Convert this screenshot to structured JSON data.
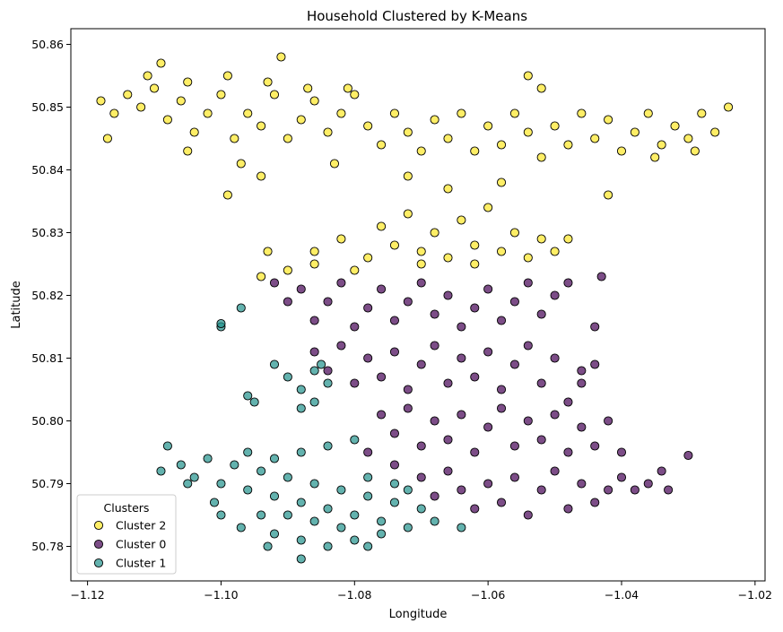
{
  "chart_data": {
    "type": "scatter",
    "title": "Household Clustered by K-Means",
    "xlabel": "Longitude",
    "ylabel": "Latitude",
    "xlim": [
      -1.1225,
      -1.0185
    ],
    "ylim": [
      50.7745,
      50.8625
    ],
    "xticks": [
      -1.12,
      -1.1,
      -1.08,
      -1.06,
      -1.04,
      -1.02
    ],
    "xtick_labels": [
      "−1.12",
      "−1.10",
      "−1.08",
      "−1.06",
      "−1.04",
      "−1.02"
    ],
    "yticks": [
      50.78,
      50.79,
      50.8,
      50.81,
      50.82,
      50.83,
      50.84,
      50.85,
      50.86
    ],
    "ytick_labels": [
      "50.78",
      "50.79",
      "50.80",
      "50.81",
      "50.82",
      "50.83",
      "50.84",
      "50.85",
      "50.86"
    ],
    "grid": false,
    "legend": {
      "title": "Clusters",
      "position": "lower-left"
    },
    "series": [
      {
        "name": "Cluster 2",
        "color": "#fde725",
        "points": [
          [
            -1.118,
            50.851
          ],
          [
            -1.116,
            50.849
          ],
          [
            -1.114,
            50.852
          ],
          [
            -1.112,
            50.85
          ],
          [
            -1.11,
            50.853
          ],
          [
            -1.108,
            50.848
          ],
          [
            -1.106,
            50.851
          ],
          [
            -1.104,
            50.846
          ],
          [
            -1.102,
            50.849
          ],
          [
            -1.1,
            50.852
          ],
          [
            -1.098,
            50.845
          ],
          [
            -1.096,
            50.849
          ],
          [
            -1.094,
            50.847
          ],
          [
            -1.092,
            50.852
          ],
          [
            -1.09,
            50.845
          ],
          [
            -1.088,
            50.848
          ],
          [
            -1.086,
            50.851
          ],
          [
            -1.084,
            50.846
          ],
          [
            -1.082,
            50.849
          ],
          [
            -1.08,
            50.852
          ],
          [
            -1.078,
            50.847
          ],
          [
            -1.076,
            50.844
          ],
          [
            -1.074,
            50.849
          ],
          [
            -1.072,
            50.846
          ],
          [
            -1.07,
            50.843
          ],
          [
            -1.068,
            50.848
          ],
          [
            -1.066,
            50.845
          ],
          [
            -1.064,
            50.849
          ],
          [
            -1.062,
            50.843
          ],
          [
            -1.06,
            50.847
          ],
          [
            -1.058,
            50.844
          ],
          [
            -1.056,
            50.849
          ],
          [
            -1.054,
            50.846
          ],
          [
            -1.052,
            50.842
          ],
          [
            -1.05,
            50.847
          ],
          [
            -1.048,
            50.844
          ],
          [
            -1.046,
            50.849
          ],
          [
            -1.044,
            50.845
          ],
          [
            -1.042,
            50.848
          ],
          [
            -1.04,
            50.843
          ],
          [
            -1.038,
            50.846
          ],
          [
            -1.036,
            50.849
          ],
          [
            -1.034,
            50.844
          ],
          [
            -1.032,
            50.847
          ],
          [
            -1.03,
            50.845
          ],
          [
            -1.028,
            50.849
          ],
          [
            -1.026,
            50.846
          ],
          [
            -1.024,
            50.85
          ],
          [
            -1.117,
            50.845
          ],
          [
            -1.111,
            50.855
          ],
          [
            -1.105,
            50.854
          ],
          [
            -1.099,
            50.855
          ],
          [
            -1.093,
            50.854
          ],
          [
            -1.087,
            50.853
          ],
          [
            -1.081,
            50.853
          ],
          [
            -1.109,
            50.857
          ],
          [
            -1.091,
            50.858
          ],
          [
            -1.099,
            50.836
          ],
          [
            -1.094,
            50.839
          ],
          [
            -1.083,
            50.841
          ],
          [
            -1.105,
            50.843
          ],
          [
            -1.097,
            50.841
          ],
          [
            -1.072,
            50.839
          ],
          [
            -1.066,
            50.837
          ],
          [
            -1.058,
            50.838
          ],
          [
            -1.054,
            50.855
          ],
          [
            -1.052,
            50.853
          ],
          [
            -1.042,
            50.836
          ],
          [
            -1.035,
            50.842
          ],
          [
            -1.029,
            50.843
          ],
          [
            -1.086,
            50.827
          ],
          [
            -1.082,
            50.829
          ],
          [
            -1.078,
            50.826
          ],
          [
            -1.076,
            50.831
          ],
          [
            -1.074,
            50.828
          ],
          [
            -1.072,
            50.833
          ],
          [
            -1.07,
            50.827
          ],
          [
            -1.068,
            50.83
          ],
          [
            -1.066,
            50.826
          ],
          [
            -1.064,
            50.832
          ],
          [
            -1.062,
            50.828
          ],
          [
            -1.06,
            50.834
          ],
          [
            -1.058,
            50.827
          ],
          [
            -1.056,
            50.83
          ],
          [
            -1.054,
            50.826
          ],
          [
            -1.052,
            50.829
          ],
          [
            -1.05,
            50.827
          ],
          [
            -1.048,
            50.829
          ],
          [
            -1.08,
            50.824
          ],
          [
            -1.09,
            50.824
          ],
          [
            -1.093,
            50.827
          ],
          [
            -1.094,
            50.823
          ],
          [
            -1.086,
            50.825
          ],
          [
            -1.07,
            50.825
          ],
          [
            -1.062,
            50.825
          ]
        ]
      },
      {
        "name": "Cluster 0",
        "color": "#440154",
        "points": [
          [
            -1.092,
            50.822
          ],
          [
            -1.09,
            50.819
          ],
          [
            -1.088,
            50.821
          ],
          [
            -1.086,
            50.816
          ],
          [
            -1.084,
            50.819
          ],
          [
            -1.082,
            50.822
          ],
          [
            -1.08,
            50.815
          ],
          [
            -1.078,
            50.818
          ],
          [
            -1.076,
            50.821
          ],
          [
            -1.074,
            50.816
          ],
          [
            -1.072,
            50.819
          ],
          [
            -1.07,
            50.822
          ],
          [
            -1.068,
            50.817
          ],
          [
            -1.066,
            50.82
          ],
          [
            -1.064,
            50.815
          ],
          [
            -1.062,
            50.818
          ],
          [
            -1.06,
            50.821
          ],
          [
            -1.058,
            50.816
          ],
          [
            -1.056,
            50.819
          ],
          [
            -1.054,
            50.822
          ],
          [
            -1.052,
            50.817
          ],
          [
            -1.05,
            50.82
          ],
          [
            -1.048,
            50.822
          ],
          [
            -1.086,
            50.811
          ],
          [
            -1.084,
            50.808
          ],
          [
            -1.082,
            50.812
          ],
          [
            -1.08,
            50.806
          ],
          [
            -1.078,
            50.81
          ],
          [
            -1.076,
            50.807
          ],
          [
            -1.074,
            50.811
          ],
          [
            -1.072,
            50.805
          ],
          [
            -1.07,
            50.809
          ],
          [
            -1.068,
            50.812
          ],
          [
            -1.066,
            50.806
          ],
          [
            -1.064,
            50.81
          ],
          [
            -1.062,
            50.807
          ],
          [
            -1.06,
            50.811
          ],
          [
            -1.058,
            50.805
          ],
          [
            -1.056,
            50.809
          ],
          [
            -1.054,
            50.812
          ],
          [
            -1.052,
            50.806
          ],
          [
            -1.05,
            50.81
          ],
          [
            -1.048,
            50.803
          ],
          [
            -1.046,
            50.808
          ],
          [
            -1.044,
            50.815
          ],
          [
            -1.076,
            50.801
          ],
          [
            -1.074,
            50.798
          ],
          [
            -1.072,
            50.802
          ],
          [
            -1.07,
            50.796
          ],
          [
            -1.068,
            50.8
          ],
          [
            -1.066,
            50.797
          ],
          [
            -1.064,
            50.801
          ],
          [
            -1.062,
            50.795
          ],
          [
            -1.06,
            50.799
          ],
          [
            -1.058,
            50.802
          ],
          [
            -1.056,
            50.796
          ],
          [
            -1.054,
            50.8
          ],
          [
            -1.052,
            50.797
          ],
          [
            -1.05,
            50.801
          ],
          [
            -1.048,
            50.795
          ],
          [
            -1.046,
            50.799
          ],
          [
            -1.044,
            50.796
          ],
          [
            -1.042,
            50.8
          ],
          [
            -1.04,
            50.795
          ],
          [
            -1.07,
            50.791
          ],
          [
            -1.068,
            50.788
          ],
          [
            -1.066,
            50.792
          ],
          [
            -1.064,
            50.789
          ],
          [
            -1.062,
            50.786
          ],
          [
            -1.06,
            50.79
          ],
          [
            -1.058,
            50.787
          ],
          [
            -1.056,
            50.791
          ],
          [
            -1.054,
            50.785
          ],
          [
            -1.052,
            50.789
          ],
          [
            -1.05,
            50.792
          ],
          [
            -1.048,
            50.786
          ],
          [
            -1.046,
            50.79
          ],
          [
            -1.044,
            50.787
          ],
          [
            -1.042,
            50.789
          ],
          [
            -1.04,
            50.791
          ],
          [
            -1.038,
            50.789
          ],
          [
            -1.036,
            50.79
          ],
          [
            -1.034,
            50.792
          ],
          [
            -1.033,
            50.789
          ],
          [
            -1.03,
            50.7945
          ],
          [
            -1.043,
            50.823
          ],
          [
            -1.044,
            50.809
          ],
          [
            -1.046,
            50.806
          ],
          [
            -1.078,
            50.795
          ],
          [
            -1.074,
            50.793
          ]
        ]
      },
      {
        "name": "Cluster 1",
        "color": "#21918c",
        "points": [
          [
            -1.108,
            50.796
          ],
          [
            -1.106,
            50.793
          ],
          [
            -1.104,
            50.791
          ],
          [
            -1.102,
            50.794
          ],
          [
            -1.1,
            50.79
          ],
          [
            -1.098,
            50.793
          ],
          [
            -1.096,
            50.789
          ],
          [
            -1.094,
            50.792
          ],
          [
            -1.092,
            50.788
          ],
          [
            -1.09,
            50.791
          ],
          [
            -1.088,
            50.787
          ],
          [
            -1.086,
            50.79
          ],
          [
            -1.084,
            50.786
          ],
          [
            -1.082,
            50.789
          ],
          [
            -1.08,
            50.785
          ],
          [
            -1.078,
            50.788
          ],
          [
            -1.076,
            50.784
          ],
          [
            -1.074,
            50.787
          ],
          [
            -1.072,
            50.783
          ],
          [
            -1.07,
            50.786
          ],
          [
            -1.094,
            50.785
          ],
          [
            -1.092,
            50.782
          ],
          [
            -1.09,
            50.785
          ],
          [
            -1.088,
            50.781
          ],
          [
            -1.086,
            50.784
          ],
          [
            -1.084,
            50.78
          ],
          [
            -1.082,
            50.783
          ],
          [
            -1.08,
            50.781
          ],
          [
            -1.078,
            50.78
          ],
          [
            -1.076,
            50.782
          ],
          [
            -1.096,
            50.795
          ],
          [
            -1.092,
            50.794
          ],
          [
            -1.088,
            50.795
          ],
          [
            -1.084,
            50.796
          ],
          [
            -1.08,
            50.797
          ],
          [
            -1.078,
            50.791
          ],
          [
            -1.074,
            50.79
          ],
          [
            -1.072,
            50.789
          ],
          [
            -1.068,
            50.784
          ],
          [
            -1.064,
            50.783
          ],
          [
            -1.109,
            50.792
          ],
          [
            -1.105,
            50.79
          ],
          [
            -1.101,
            50.787
          ],
          [
            -1.1,
            50.785
          ],
          [
            -1.097,
            50.783
          ],
          [
            -1.093,
            50.78
          ],
          [
            -1.088,
            50.778
          ],
          [
            -1.086,
            50.808
          ],
          [
            -1.088,
            50.805
          ],
          [
            -1.084,
            50.806
          ],
          [
            -1.086,
            50.803
          ],
          [
            -1.09,
            50.807
          ],
          [
            -1.092,
            50.809
          ],
          [
            -1.085,
            50.809
          ],
          [
            -1.088,
            50.802
          ],
          [
            -1.096,
            50.804
          ],
          [
            -1.095,
            50.803
          ],
          [
            -1.1,
            50.815
          ],
          [
            -1.1,
            50.8155
          ],
          [
            -1.097,
            50.818
          ]
        ]
      }
    ]
  }
}
